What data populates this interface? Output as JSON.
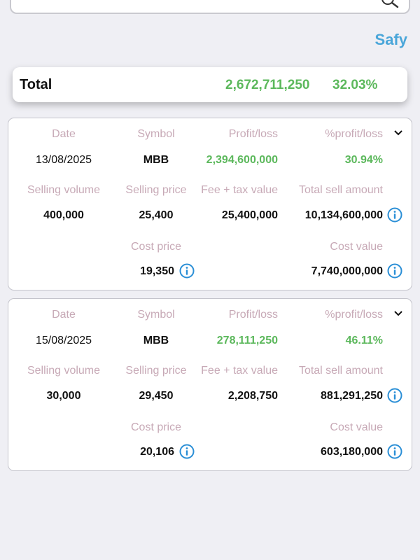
{
  "app": {
    "brand": "Safy"
  },
  "total": {
    "label": "Total",
    "amount": "2,672,711,250",
    "percent": "32.03%"
  },
  "labels": {
    "date": "Date",
    "symbol": "Symbol",
    "profit_loss": "Profit/loss",
    "pct_profit_loss": "%profit/loss",
    "selling_volume": "Selling volume",
    "selling_price": "Selling price",
    "fee_tax": "Fee + tax value",
    "total_sell_amount": "Total sell amount",
    "cost_price": "Cost price",
    "cost_value": "Cost value"
  },
  "trades": [
    {
      "date": "13/08/2025",
      "symbol": "MBB",
      "profit_loss": "2,394,600,000",
      "pct_profit_loss": "30.94%",
      "selling_volume": "400,000",
      "selling_price": "25,400",
      "fee_tax": "25,400,000",
      "total_sell_amount": "10,134,600,000",
      "cost_price": "19,350",
      "cost_value": "7,740,000,000"
    },
    {
      "date": "15/08/2025",
      "symbol": "MBB",
      "profit_loss": "278,111,250",
      "pct_profit_loss": "46.11%",
      "selling_volume": "30,000",
      "selling_price": "29,450",
      "fee_tax": "2,208,750",
      "total_sell_amount": "881,291,250",
      "cost_price": "20,106",
      "cost_value": "603,180,000"
    }
  ],
  "colors": {
    "profit": "#5cb85c",
    "label": "#c7a9b6",
    "brand": "#4aa6d9",
    "info_icon": "#2b8fd6"
  }
}
